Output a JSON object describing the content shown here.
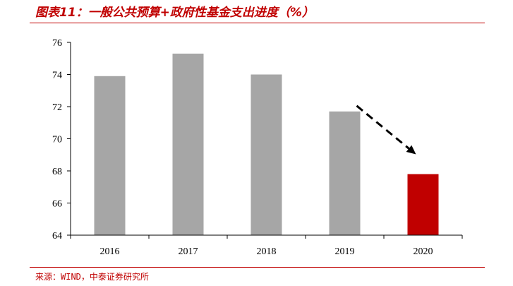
{
  "header": {
    "title": "图表11：一般公共预算+政府性基金支出进度（%）"
  },
  "footer": {
    "source": "来源：WIND，中泰证券研究所"
  },
  "chart_data": {
    "type": "bar",
    "title": "图表11：一般公共预算+政府性基金支出进度（%）",
    "categories": [
      "2016",
      "2017",
      "2018",
      "2019",
      "2020"
    ],
    "values": [
      73.9,
      75.3,
      74.0,
      71.7,
      67.8
    ],
    "bar_colors": [
      "#a6a6a6",
      "#a6a6a6",
      "#a6a6a6",
      "#a6a6a6",
      "#c00000"
    ],
    "ylim": [
      64,
      76
    ],
    "yticks": [
      64,
      66,
      68,
      70,
      72,
      74,
      76
    ],
    "xlabel": "",
    "ylabel": "",
    "grid": false,
    "annotations": [
      {
        "type": "dashed-arrow",
        "from_category": "2019",
        "to_category": "2020",
        "color": "#000000"
      }
    ]
  }
}
